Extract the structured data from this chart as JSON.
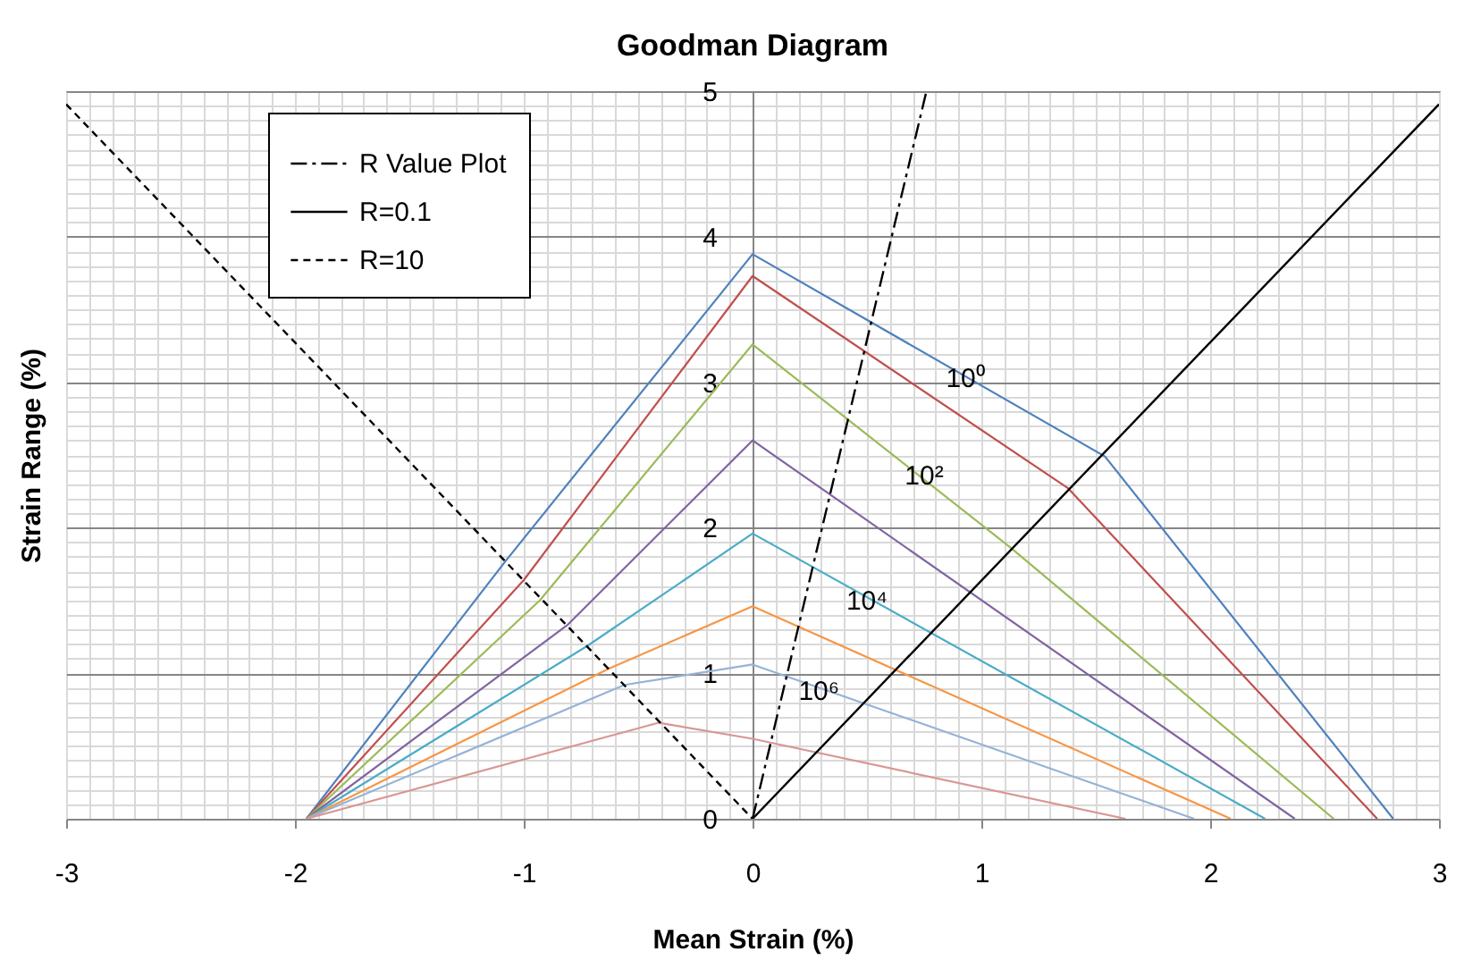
{
  "chart_data": {
    "type": "line",
    "title": "Goodman Diagram",
    "xlabel": "Mean Strain (%)",
    "ylabel": "Strain Range (%)",
    "xlim": [
      -3,
      3
    ],
    "xticks": [
      -3,
      -2,
      -1,
      0,
      1,
      2,
      3
    ],
    "ylim": [
      0,
      5
    ],
    "yticks": [
      0,
      1,
      2,
      3,
      4,
      5
    ],
    "grid": true,
    "legend": "top left",
    "series": [
      {
        "color": "#4f81bd",
        "x": [
          -1.95,
          -1.08,
          0,
          1.54,
          2.8
        ],
        "values": [
          0,
          1.77,
          3.88,
          2.49,
          0
        ]
      },
      {
        "color": "#c0504d",
        "x": [
          -1.95,
          -1.0,
          0,
          1.38,
          2.73
        ],
        "values": [
          0,
          1.64,
          3.73,
          2.27,
          0
        ]
      },
      {
        "color": "#9bbb59",
        "x": [
          -1.95,
          -0.93,
          0,
          1.13,
          2.54
        ],
        "values": [
          0,
          1.5,
          3.26,
          1.86,
          0
        ]
      },
      {
        "color": "#8064a2",
        "x": [
          -1.95,
          -0.81,
          0,
          2.37
        ],
        "values": [
          0,
          1.33,
          2.6,
          0
        ]
      },
      {
        "color": "#4bacc6",
        "x": [
          -1.95,
          -0.72,
          0,
          2.24
        ],
        "values": [
          0,
          1.19,
          1.96,
          0
        ]
      },
      {
        "color": "#f79646",
        "x": [
          -1.95,
          -0.63,
          0,
          2.09
        ],
        "values": [
          0,
          1.03,
          1.46,
          0
        ]
      },
      {
        "color": "#95b3d7",
        "x": [
          -1.95,
          -0.56,
          0,
          1.93
        ],
        "values": [
          0,
          0.92,
          1.06,
          0
        ]
      },
      {
        "color": "#d99694",
        "x": [
          -1.95,
          -0.41,
          0,
          1.63
        ],
        "values": [
          0,
          0.66,
          0.55,
          0
        ]
      },
      {
        "name": "R Value Plot",
        "color": "#000000",
        "line_style": "dashdot",
        "x": [
          0,
          0.76
        ],
        "values": [
          0,
          5
        ]
      },
      {
        "name": "R=0.1",
        "color": "#000000",
        "line_style": "solid",
        "x": [
          0,
          3
        ],
        "values": [
          0,
          4.91
        ]
      },
      {
        "name": "R=10",
        "color": "#000000",
        "line_style": "dashed",
        "x": [
          -3,
          0
        ],
        "values": [
          4.91,
          0
        ]
      }
    ],
    "annotations": [
      {
        "text": "10⁰",
        "x": 0.93,
        "y": 3.03
      },
      {
        "text": "10²",
        "x": 0.75,
        "y": 2.36
      },
      {
        "text": "10⁴",
        "x": 0.5,
        "y": 1.5
      },
      {
        "text": "10⁶",
        "x": 0.29,
        "y": 0.88
      }
    ]
  }
}
